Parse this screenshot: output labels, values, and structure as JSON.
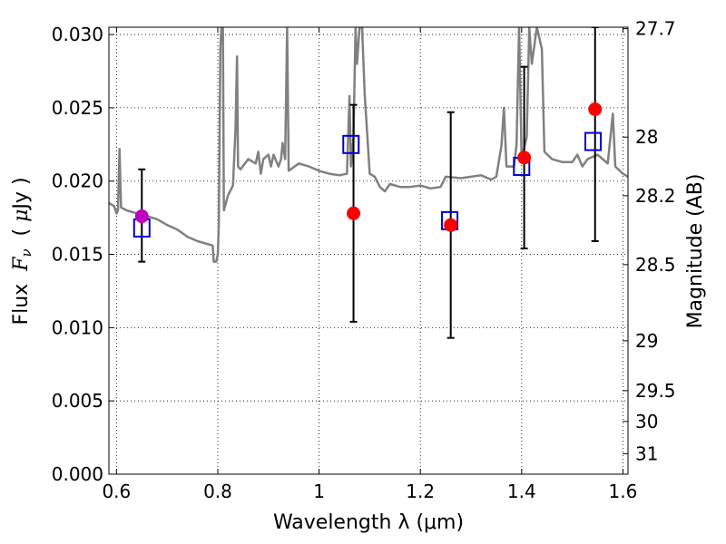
{
  "chart_data": {
    "type": "scatter",
    "xlabel": "Wavelength  λ (μm)",
    "ylabel": "Flux  Fν  ( μJy )",
    "ylabel_parts": [
      "Flux  ",
      "F",
      "ν",
      "  ( ",
      "μ",
      "Jy )"
    ],
    "right_ylabel": "Magnitude (AB)",
    "xlim": [
      0.585,
      1.61
    ],
    "ylim": [
      0.0,
      0.0305
    ],
    "grid": true,
    "x_ticks": [
      0.6,
      0.8,
      1.0,
      1.2,
      1.4,
      1.6
    ],
    "x_tick_labels": [
      "0.6",
      "0.8",
      "1",
      "1.2",
      "1.4",
      "1.6"
    ],
    "y_ticks": [
      0.0,
      0.005,
      0.01,
      0.015,
      0.02,
      0.025,
      0.03
    ],
    "y_tick_labels": [
      "0.000",
      "0.005",
      "0.010",
      "0.015",
      "0.020",
      "0.025",
      "0.030"
    ],
    "right_ticks": [
      {
        "flux": 0.0304,
        "label": "27.7"
      },
      {
        "flux": 0.023,
        "label": "28"
      },
      {
        "flux": 0.019,
        "label": "28.2"
      },
      {
        "flux": 0.0143,
        "label": "28.5"
      },
      {
        "flux": 0.0091,
        "label": "29"
      },
      {
        "flux": 0.0057,
        "label": "29.5"
      },
      {
        "flux": 0.0036,
        "label": "30"
      },
      {
        "flux": 0.0014,
        "label": "31"
      }
    ],
    "colors": {
      "spectrum": "#808080",
      "observed": "#ff0000",
      "observed_first": "#bf00bf",
      "model": "#0000cc",
      "errorbar": "#000000"
    },
    "series": [
      {
        "kind": "spectrum",
        "points": [
          [
            0.585,
            0.0185
          ],
          [
            0.595,
            0.0183
          ],
          [
            0.6,
            0.0178
          ],
          [
            0.603,
            0.018
          ],
          [
            0.606,
            0.0222
          ],
          [
            0.609,
            0.0182
          ],
          [
            0.62,
            0.018
          ],
          [
            0.64,
            0.0178
          ],
          [
            0.66,
            0.0176
          ],
          [
            0.68,
            0.0174
          ],
          [
            0.7,
            0.017
          ],
          [
            0.72,
            0.0167
          ],
          [
            0.74,
            0.0162
          ],
          [
            0.76,
            0.0159
          ],
          [
            0.78,
            0.0157
          ],
          [
            0.79,
            0.0156
          ],
          [
            0.792,
            0.0145
          ],
          [
            0.797,
            0.0145
          ],
          [
            0.8,
            0.015
          ],
          [
            0.802,
            0.017
          ],
          [
            0.805,
            0.029
          ],
          [
            0.807,
            0.0305
          ],
          [
            0.81,
            0.0305
          ],
          [
            0.812,
            0.018
          ],
          [
            0.82,
            0.019
          ],
          [
            0.83,
            0.0197
          ],
          [
            0.835,
            0.0235
          ],
          [
            0.838,
            0.0285
          ],
          [
            0.84,
            0.021
          ],
          [
            0.845,
            0.0208
          ],
          [
            0.86,
            0.0215
          ],
          [
            0.875,
            0.0212
          ],
          [
            0.88,
            0.022
          ],
          [
            0.885,
            0.0205
          ],
          [
            0.89,
            0.0215
          ],
          [
            0.9,
            0.0218
          ],
          [
            0.905,
            0.021
          ],
          [
            0.91,
            0.0218
          ],
          [
            0.92,
            0.021
          ],
          [
            0.925,
            0.0215
          ],
          [
            0.928,
            0.0226
          ],
          [
            0.933,
            0.0215
          ],
          [
            0.937,
            0.0305
          ],
          [
            0.94,
            0.0207
          ],
          [
            0.96,
            0.0212
          ],
          [
            0.98,
            0.021
          ],
          [
            1.0,
            0.0207
          ],
          [
            1.02,
            0.0205
          ],
          [
            1.04,
            0.0204
          ],
          [
            1.055,
            0.0205
          ],
          [
            1.06,
            0.0258
          ],
          [
            1.063,
            0.021
          ],
          [
            1.068,
            0.023
          ],
          [
            1.072,
            0.0305
          ],
          [
            1.075,
            0.028
          ],
          [
            1.08,
            0.0305
          ],
          [
            1.085,
            0.0305
          ],
          [
            1.09,
            0.026
          ],
          [
            1.1,
            0.0205
          ],
          [
            1.11,
            0.0203
          ],
          [
            1.12,
            0.0196
          ],
          [
            1.13,
            0.0193
          ],
          [
            1.14,
            0.0198
          ],
          [
            1.16,
            0.0196
          ],
          [
            1.18,
            0.0196
          ],
          [
            1.2,
            0.0197
          ],
          [
            1.22,
            0.0195
          ],
          [
            1.24,
            0.0196
          ],
          [
            1.25,
            0.0203
          ],
          [
            1.28,
            0.0202
          ],
          [
            1.3,
            0.0203
          ],
          [
            1.32,
            0.0204
          ],
          [
            1.34,
            0.0201
          ],
          [
            1.35,
            0.0203
          ],
          [
            1.36,
            0.0224
          ],
          [
            1.365,
            0.025
          ],
          [
            1.37,
            0.021
          ],
          [
            1.385,
            0.021
          ],
          [
            1.39,
            0.0225
          ],
          [
            1.395,
            0.0305
          ],
          [
            1.4,
            0.0215
          ],
          [
            1.41,
            0.023
          ],
          [
            1.415,
            0.0305
          ],
          [
            1.42,
            0.028
          ],
          [
            1.43,
            0.0305
          ],
          [
            1.44,
            0.029
          ],
          [
            1.445,
            0.022
          ],
          [
            1.46,
            0.0215
          ],
          [
            1.48,
            0.0213
          ],
          [
            1.5,
            0.0213
          ],
          [
            1.51,
            0.0218
          ],
          [
            1.52,
            0.021
          ],
          [
            1.53,
            0.0215
          ],
          [
            1.55,
            0.0218
          ],
          [
            1.56,
            0.0215
          ],
          [
            1.57,
            0.0212
          ],
          [
            1.58,
            0.0246
          ],
          [
            1.585,
            0.021
          ],
          [
            1.6,
            0.0205
          ],
          [
            1.61,
            0.0203
          ]
        ]
      },
      {
        "kind": "observed",
        "points": [
          {
            "x": 0.65,
            "y": 0.0176,
            "err_lo": 0.0145,
            "err_hi": 0.0208
          },
          {
            "x": 1.068,
            "y": 0.0178,
            "err_lo": 0.0104,
            "err_hi": 0.0252
          },
          {
            "x": 1.26,
            "y": 0.017,
            "err_lo": 0.0093,
            "err_hi": 0.0247
          },
          {
            "x": 1.405,
            "y": 0.0216,
            "err_lo": 0.0154,
            "err_hi": 0.0278
          },
          {
            "x": 1.545,
            "y": 0.0249,
            "err_lo": 0.0159,
            "err_hi": 0.0305
          }
        ]
      },
      {
        "kind": "model",
        "points": [
          {
            "x": 0.65,
            "y": 0.0168
          },
          {
            "x": 1.063,
            "y": 0.0225
          },
          {
            "x": 1.258,
            "y": 0.0173
          },
          {
            "x": 1.4,
            "y": 0.021
          },
          {
            "x": 1.541,
            "y": 0.0227
          }
        ]
      }
    ]
  }
}
